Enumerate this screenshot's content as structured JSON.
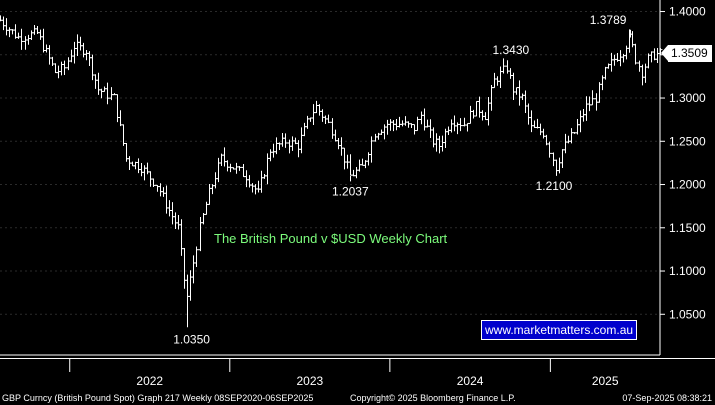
{
  "chart_data": {
    "type": "line",
    "title": "The British Pound v $USD Weekly Chart",
    "instrument": "GBP Curncy (British Pound Spot)",
    "yticks": [
      "1.4000",
      "1.3500",
      "1.3000",
      "1.2500",
      "1.2000",
      "1.1500",
      "1.1000",
      "1.0500"
    ],
    "ylim": [
      1.0,
      1.4
    ],
    "xticks": [
      "2022",
      "2023",
      "2024",
      "2025"
    ],
    "xlim": [
      "2021-07-26",
      "2025-09-08"
    ],
    "last_price": "1.3509",
    "annotations": [
      {
        "label": "1.0350",
        "x": "2022-09-26",
        "y": 1.035
      },
      {
        "label": "1.2037",
        "x": "2023-10-02",
        "y": 1.2037
      },
      {
        "label": "1.3430",
        "x": "2024-09-23",
        "y": 1.343
      },
      {
        "label": "1.2100",
        "x": "2025-01-13",
        "y": 1.21
      },
      {
        "label": "1.3789",
        "x": "2025-07-01",
        "y": 1.3789
      }
    ],
    "series": [
      {
        "values": [
          [
            "2021-07-26",
            1.39
          ],
          [
            "2021-09-06",
            1.37
          ],
          [
            "2021-10-18",
            1.375
          ],
          [
            "2021-11-29",
            1.33
          ],
          [
            "2021-12-20",
            1.335
          ],
          [
            "2022-01-10",
            1.36
          ],
          [
            "2022-02-07",
            1.355
          ],
          [
            "2022-03-07",
            1.31
          ],
          [
            "2022-04-11",
            1.3
          ],
          [
            "2022-05-09",
            1.23
          ],
          [
            "2022-06-13",
            1.22
          ],
          [
            "2022-07-18",
            1.2
          ],
          [
            "2022-08-15",
            1.17
          ],
          [
            "2022-09-05",
            1.15
          ],
          [
            "2022-09-19",
            1.09
          ],
          [
            "2022-09-26",
            1.07
          ],
          [
            "2022-10-10",
            1.11
          ],
          [
            "2022-10-24",
            1.15
          ],
          [
            "2022-11-14",
            1.19
          ],
          [
            "2022-12-12",
            1.23
          ],
          [
            "2023-01-09",
            1.22
          ],
          [
            "2023-02-06",
            1.21
          ],
          [
            "2023-03-06",
            1.19
          ],
          [
            "2023-04-03",
            1.24
          ],
          [
            "2023-05-08",
            1.25
          ],
          [
            "2023-06-05",
            1.245
          ],
          [
            "2023-07-03",
            1.28
          ],
          [
            "2023-07-17",
            1.29
          ],
          [
            "2023-08-14",
            1.27
          ],
          [
            "2023-09-04",
            1.25
          ],
          [
            "2023-09-25",
            1.22
          ],
          [
            "2023-10-02",
            1.21
          ],
          [
            "2023-10-30",
            1.22
          ],
          [
            "2023-11-27",
            1.26
          ],
          [
            "2023-12-25",
            1.27
          ],
          [
            "2024-01-29",
            1.27
          ],
          [
            "2024-02-26",
            1.265
          ],
          [
            "2024-03-11",
            1.28
          ],
          [
            "2024-04-08",
            1.25
          ],
          [
            "2024-04-22",
            1.245
          ],
          [
            "2024-05-20",
            1.275
          ],
          [
            "2024-06-17",
            1.27
          ],
          [
            "2024-07-15",
            1.29
          ],
          [
            "2024-08-05",
            1.28
          ],
          [
            "2024-08-26",
            1.32
          ],
          [
            "2024-09-23",
            1.335
          ],
          [
            "2024-10-07",
            1.31
          ],
          [
            "2024-10-28",
            1.3
          ],
          [
            "2024-11-18",
            1.265
          ],
          [
            "2024-12-16",
            1.26
          ],
          [
            "2025-01-13",
            1.22
          ],
          [
            "2025-01-27",
            1.24
          ],
          [
            "2025-02-24",
            1.26
          ],
          [
            "2025-03-24",
            1.29
          ],
          [
            "2025-04-14",
            1.3
          ],
          [
            "2025-05-05",
            1.33
          ],
          [
            "2025-05-26",
            1.345
          ],
          [
            "2025-06-16",
            1.355
          ],
          [
            "2025-07-01",
            1.37
          ],
          [
            "2025-07-14",
            1.345
          ],
          [
            "2025-07-28",
            1.33
          ],
          [
            "2025-08-11",
            1.345
          ],
          [
            "2025-08-25",
            1.35
          ],
          [
            "2025-09-08",
            1.3509
          ]
        ]
      }
    ]
  },
  "footer": {
    "left": "GBP Curncy (British Pound Spot) Graph 217  Weekly 08SEP2020-06SEP2025",
    "copyright": "Copyright© 2025 Bloomberg Finance L.P.",
    "timestamp": "07-Sep-2025 08:38:21"
  },
  "watermark": "www.marketmatters.com.au",
  "colors": {
    "background": "#000000",
    "bars": "#ffffff",
    "title": "#7CFC7C",
    "watermark_bg": "#0000cc"
  }
}
